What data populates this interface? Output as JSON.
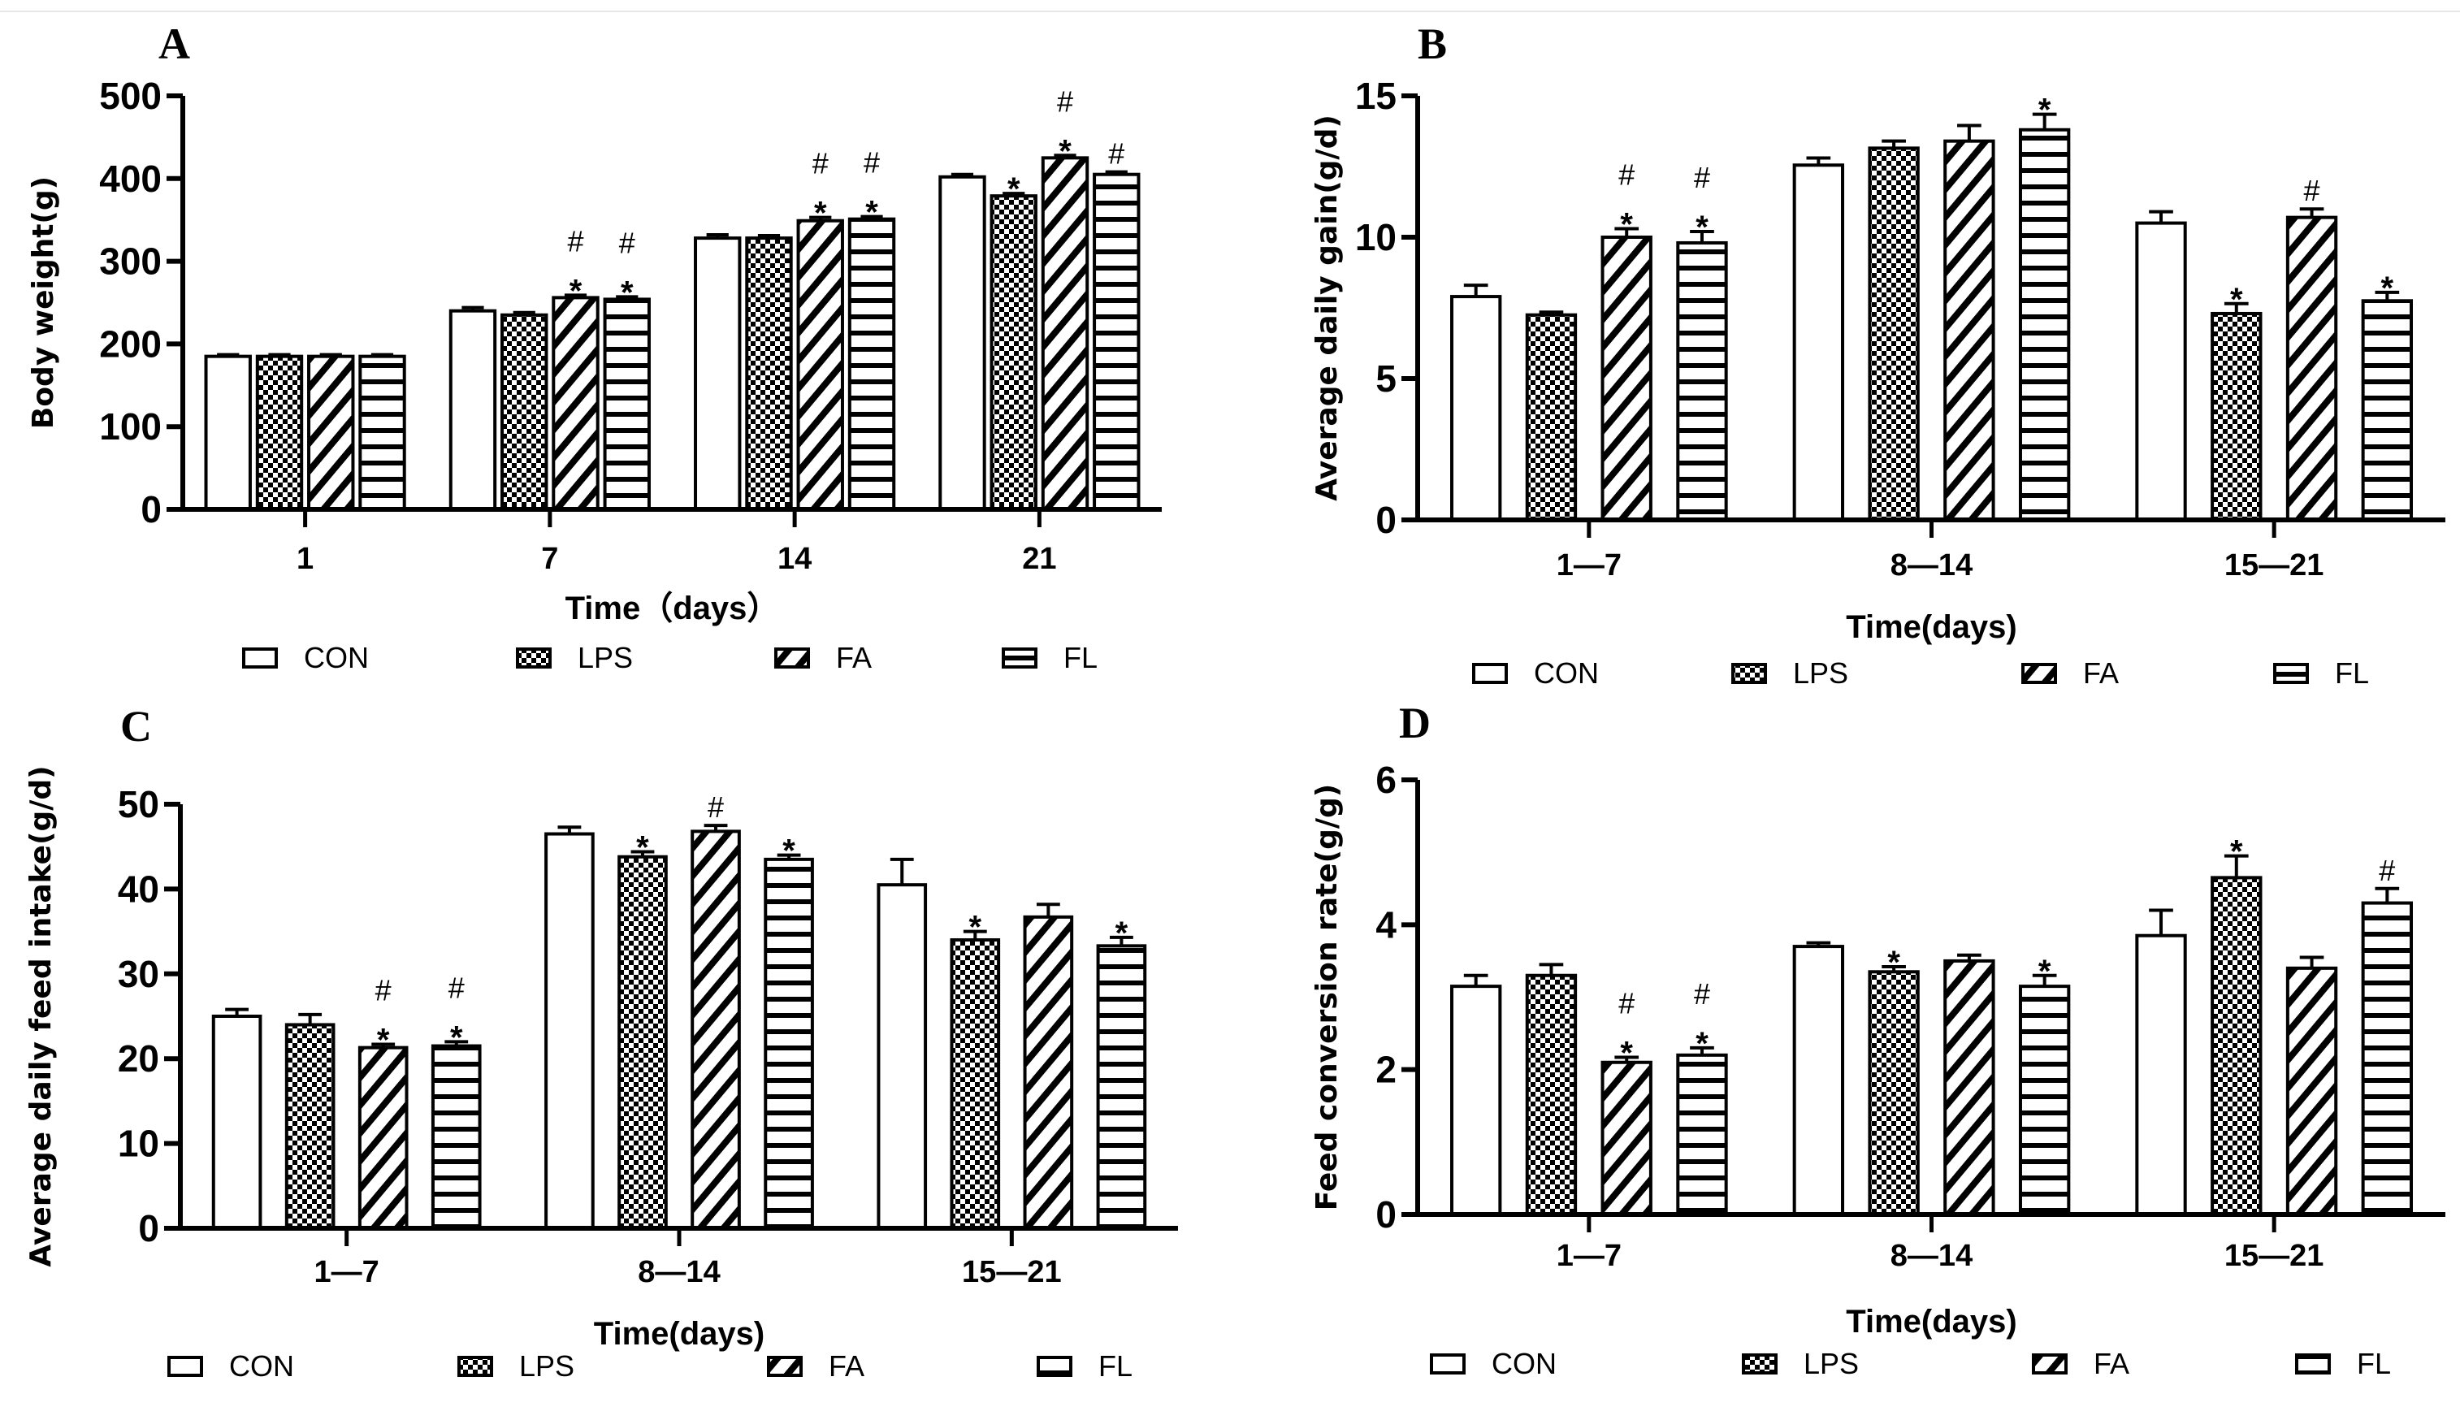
{
  "legend": [
    "CON",
    "LPS",
    "FA",
    "FL"
  ],
  "colors": {
    "ink": "#000000",
    "background": "#ffffff"
  },
  "chart_data": [
    {
      "panel": "A",
      "type": "bar",
      "title": "",
      "ylabel": "Body weight(g)",
      "xlabel": "Time（days）",
      "categories": [
        "1",
        "7",
        "14",
        "21"
      ],
      "yticks": [
        0,
        100,
        200,
        300,
        400,
        500
      ],
      "ylim": [
        0,
        500
      ],
      "series": [
        {
          "name": "CON",
          "values": [
            185,
            240,
            328,
            402
          ],
          "errors": [
            2,
            4,
            4,
            3
          ]
        },
        {
          "name": "LPS",
          "values": [
            185,
            235,
            328,
            379
          ],
          "errors": [
            2,
            3,
            3,
            3
          ]
        },
        {
          "name": "FA",
          "values": [
            185,
            256,
            349,
            425
          ],
          "errors": [
            2,
            3,
            4,
            3
          ]
        },
        {
          "name": "FL",
          "values": [
            185,
            254,
            351,
            405
          ],
          "errors": [
            2,
            3,
            3,
            3
          ]
        }
      ],
      "annotations": [
        [
          "",
          "",
          "",
          ""
        ],
        [
          "",
          "",
          "*#",
          "*#"
        ],
        [
          "",
          "",
          "*#",
          "*#"
        ],
        [
          "",
          "*",
          "*#",
          "#"
        ]
      ]
    },
    {
      "panel": "B",
      "type": "bar",
      "title": "",
      "ylabel": "Average daily gain(g/d)",
      "xlabel": "Time(days)",
      "categories": [
        "1—7",
        "8—14",
        "15—21"
      ],
      "yticks": [
        0,
        5,
        10,
        15
      ],
      "ylim": [
        0,
        15
      ],
      "series": [
        {
          "name": "CON",
          "values": [
            7.9,
            12.55,
            10.5
          ],
          "errors": [
            0.4,
            0.25,
            0.4
          ]
        },
        {
          "name": "LPS",
          "values": [
            7.25,
            13.15,
            7.3
          ],
          "errors": [
            0.1,
            0.25,
            0.35
          ]
        },
        {
          "name": "FA",
          "values": [
            10.0,
            13.4,
            10.7
          ],
          "errors": [
            0.3,
            0.55,
            0.3
          ]
        },
        {
          "name": "FL",
          "values": [
            9.8,
            13.8,
            7.75
          ],
          "errors": [
            0.4,
            0.55,
            0.3
          ]
        }
      ],
      "annotations": [
        [
          "",
          "",
          "*#",
          "*#"
        ],
        [
          "",
          "",
          "",
          "*"
        ],
        [
          "",
          "*",
          "#",
          "*"
        ]
      ]
    },
    {
      "panel": "C",
      "type": "bar",
      "title": "",
      "ylabel": "Average daily feed intake(g/d)",
      "xlabel": "Time(days)",
      "categories": [
        "1—7",
        "8—14",
        "15—21"
      ],
      "yticks": [
        0,
        10,
        20,
        30,
        40,
        50
      ],
      "ylim": [
        0,
        50
      ],
      "series": [
        {
          "name": "CON",
          "values": [
            25.0,
            46.5,
            40.5
          ],
          "errors": [
            0.8,
            0.8,
            3.0
          ]
        },
        {
          "name": "LPS",
          "values": [
            24.0,
            43.8,
            34.0
          ],
          "errors": [
            1.2,
            0.6,
            1.0
          ]
        },
        {
          "name": "FA",
          "values": [
            21.3,
            46.8,
            36.7
          ],
          "errors": [
            0.4,
            0.7,
            1.5
          ]
        },
        {
          "name": "FL",
          "values": [
            21.5,
            43.5,
            33.3
          ],
          "errors": [
            0.5,
            0.5,
            1.0
          ]
        }
      ],
      "annotations": [
        [
          "",
          "",
          "*#",
          "*#"
        ],
        [
          "",
          "*",
          "#",
          "*"
        ],
        [
          "",
          "*",
          "",
          "*"
        ]
      ]
    },
    {
      "panel": "D",
      "type": "bar",
      "title": "",
      "ylabel": "Feed conversion rate(g/g)",
      "xlabel": "Time(days)",
      "categories": [
        "1—7",
        "8—14",
        "15—21"
      ],
      "yticks": [
        0,
        2,
        4,
        6
      ],
      "ylim": [
        0,
        6
      ],
      "series": [
        {
          "name": "CON",
          "values": [
            3.15,
            3.7,
            3.85
          ],
          "errors": [
            0.15,
            0.05,
            0.35
          ]
        },
        {
          "name": "LPS",
          "values": [
            3.3,
            3.35,
            4.65
          ],
          "errors": [
            0.15,
            0.07,
            0.3
          ]
        },
        {
          "name": "FA",
          "values": [
            2.1,
            3.5,
            3.4
          ],
          "errors": [
            0.07,
            0.08,
            0.15
          ]
        },
        {
          "name": "FL",
          "values": [
            2.2,
            3.15,
            4.3
          ],
          "errors": [
            0.1,
            0.15,
            0.2
          ]
        }
      ],
      "annotations": [
        [
          "",
          "",
          "*#",
          "*#"
        ],
        [
          "",
          "*",
          "",
          "*"
        ],
        [
          "",
          "*",
          "",
          "#"
        ]
      ]
    }
  ]
}
